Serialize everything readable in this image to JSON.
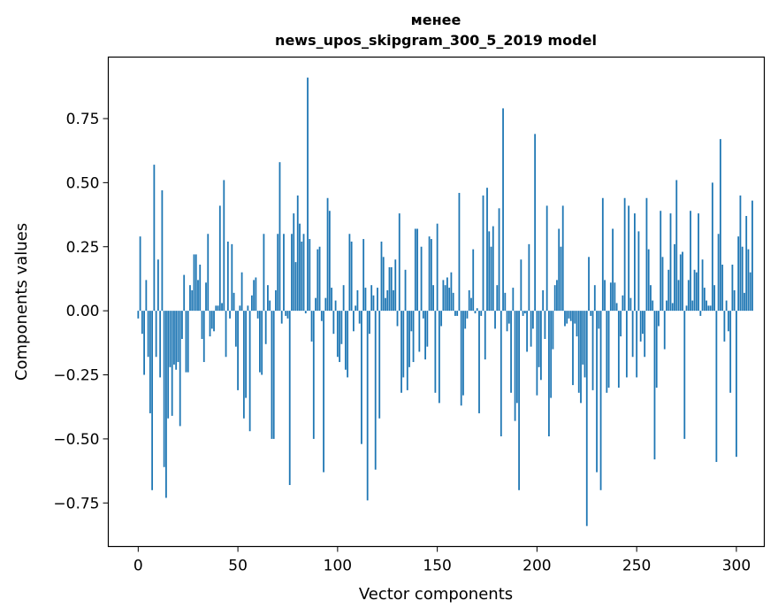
{
  "chart_data": {
    "type": "bar",
    "title_line1": "менее",
    "title_line2": "news_upos_skipgram_300_5_2019 model",
    "xlabel": "Vector components",
    "ylabel": "Components values",
    "xlim": [
      -15,
      314
    ],
    "ylim": [
      -0.92,
      0.99
    ],
    "x_ticks": [
      0,
      50,
      100,
      150,
      200,
      250,
      300
    ],
    "x_tick_labels": [
      "0",
      "50",
      "100",
      "150",
      "200",
      "250",
      "300"
    ],
    "y_ticks": [
      -0.75,
      -0.5,
      -0.25,
      0.0,
      0.25,
      0.5,
      0.75
    ],
    "y_tick_labels": [
      "−0.75",
      "−0.50",
      "−0.25",
      "0.00",
      "0.25",
      "0.50",
      "0.75"
    ],
    "bar_color": "#1f77b4",
    "values": [
      -0.03,
      0.29,
      -0.09,
      -0.25,
      0.12,
      -0.18,
      -0.4,
      -0.7,
      0.57,
      -0.18,
      0.2,
      -0.26,
      0.47,
      -0.61,
      -0.73,
      -0.42,
      -0.22,
      -0.41,
      -0.21,
      -0.23,
      -0.2,
      -0.45,
      -0.11,
      0.14,
      -0.24,
      -0.24,
      0.1,
      0.08,
      0.22,
      0.22,
      0.12,
      0.18,
      -0.11,
      -0.2,
      0.11,
      0.3,
      -0.1,
      -0.07,
      -0.08,
      0.02,
      0.02,
      0.41,
      0.03,
      0.51,
      -0.18,
      0.27,
      -0.03,
      0.26,
      0.07,
      -0.14,
      -0.31,
      0.02,
      0.15,
      -0.42,
      -0.34,
      0.02,
      -0.47,
      0.06,
      0.12,
      0.13,
      -0.03,
      -0.24,
      -0.25,
      0.3,
      -0.13,
      0.1,
      0.04,
      -0.5,
      -0.5,
      0.08,
      0.3,
      0.58,
      -0.05,
      0.3,
      -0.02,
      -0.03,
      -0.68,
      0.3,
      0.38,
      0.19,
      0.45,
      0.34,
      0.27,
      0.3,
      -0.01,
      0.91,
      0.28,
      -0.12,
      -0.5,
      0.05,
      0.24,
      0.25,
      -0.04,
      -0.63,
      0.05,
      0.44,
      0.39,
      0.09,
      -0.09,
      0.04,
      -0.18,
      -0.2,
      -0.13,
      0.1,
      -0.23,
      -0.26,
      0.3,
      0.27,
      -0.08,
      0.02,
      0.08,
      -0.05,
      -0.52,
      0.28,
      0.09,
      -0.74,
      -0.09,
      0.1,
      0.06,
      -0.62,
      0.09,
      -0.42,
      0.27,
      0.21,
      0.05,
      0.08,
      0.17,
      0.17,
      0.08,
      0.2,
      -0.06,
      0.38,
      -0.32,
      -0.26,
      0.16,
      -0.31,
      -0.22,
      -0.08,
      -0.2,
      0.32,
      0.32,
      -0.16,
      0.25,
      -0.03,
      -0.19,
      -0.14,
      0.29,
      0.28,
      0.1,
      -0.32,
      0.34,
      -0.36,
      -0.06,
      0.12,
      0.1,
      0.13,
      0.09,
      0.15,
      0.07,
      -0.02,
      -0.02,
      0.46,
      -0.37,
      -0.33,
      -0.07,
      -0.03,
      0.08,
      0.05,
      0.24,
      -0.01,
      0.01,
      -0.4,
      -0.02,
      0.45,
      -0.19,
      0.48,
      0.31,
      0.25,
      0.33,
      -0.07,
      0.1,
      0.4,
      -0.49,
      0.79,
      0.07,
      -0.08,
      -0.05,
      -0.32,
      0.09,
      -0.43,
      -0.36,
      -0.7,
      0.2,
      -0.02,
      -0.01,
      -0.16,
      0.26,
      -0.14,
      -0.07,
      0.69,
      -0.33,
      -0.22,
      -0.27,
      0.08,
      -0.11,
      0.41,
      -0.49,
      -0.34,
      -0.15,
      0.1,
      0.12,
      0.32,
      0.25,
      0.41,
      -0.06,
      -0.05,
      -0.03,
      -0.04,
      -0.29,
      -0.05,
      -0.1,
      -0.32,
      -0.36,
      -0.21,
      -0.26,
      -0.84,
      0.21,
      -0.02,
      -0.31,
      0.1,
      -0.63,
      -0.07,
      -0.7,
      0.44,
      0.12,
      -0.32,
      -0.3,
      0.11,
      0.32,
      0.11,
      0.03,
      -0.3,
      -0.1,
      0.06,
      0.44,
      -0.26,
      0.41,
      0.05,
      -0.18,
      0.38,
      -0.26,
      0.31,
      -0.12,
      -0.09,
      -0.18,
      0.44,
      0.24,
      0.1,
      0.04,
      -0.58,
      -0.3,
      -0.06,
      0.39,
      0.21,
      -0.15,
      0.04,
      0.16,
      0.38,
      0.03,
      0.26,
      0.51,
      0.12,
      0.22,
      0.23,
      -0.5,
      0.02,
      0.12,
      0.39,
      0.04,
      0.16,
      0.15,
      0.38,
      -0.02,
      0.2,
      0.09,
      0.04,
      0.02,
      0.02,
      0.5,
      0.1,
      -0.59,
      0.3,
      0.67,
      0.18,
      -0.12,
      0.04,
      -0.08,
      -0.32,
      0.18,
      0.08,
      -0.57,
      0.29,
      0.45,
      0.25,
      0.07,
      0.37,
      0.24,
      0.15,
      0.43
    ]
  }
}
